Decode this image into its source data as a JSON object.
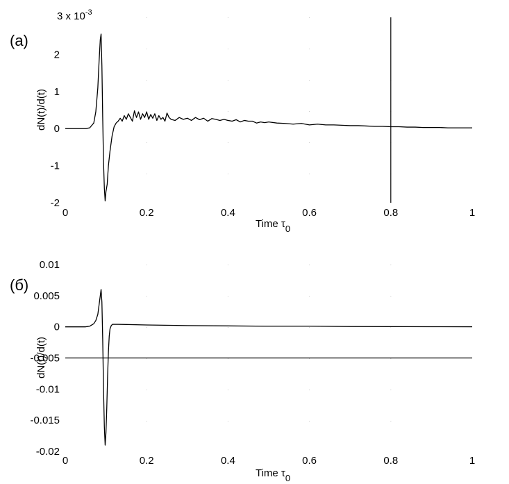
{
  "chart_data": [
    {
      "type": "line",
      "panel_label": "(a)",
      "xlabel": "Time",
      "xlabel_symbol": "τ",
      "xlabel_sub": "0",
      "ylabel": "dN(t)/d(t)",
      "exponent_base": "3 x 10",
      "exponent_power": "-3",
      "xlim": [
        0,
        1
      ],
      "ylim": [
        -2,
        3
      ],
      "xticks": [
        "0",
        "0.2",
        "0.4",
        "0.6",
        "0.8",
        "1"
      ],
      "yticks": [
        "-2",
        "-1",
        "0",
        "1",
        "2"
      ],
      "vertical_marker_x": 0.8,
      "grid": "dotted",
      "series": [
        {
          "x": [
            0,
            0.05,
            0.06,
            0.07,
            0.075,
            0.08,
            0.083,
            0.086,
            0.088,
            0.09,
            0.092,
            0.094,
            0.096,
            0.098,
            0.1,
            0.103,
            0.106,
            0.11,
            0.115,
            0.12,
            0.125,
            0.13,
            0.135,
            0.14,
            0.145,
            0.15,
            0.155,
            0.16,
            0.165,
            0.17,
            0.175,
            0.18,
            0.185,
            0.19,
            0.195,
            0.2,
            0.205,
            0.21,
            0.215,
            0.22,
            0.225,
            0.23,
            0.235,
            0.24,
            0.245,
            0.25,
            0.255,
            0.26,
            0.27,
            0.28,
            0.29,
            0.3,
            0.31,
            0.32,
            0.33,
            0.34,
            0.35,
            0.36,
            0.37,
            0.38,
            0.39,
            0.4,
            0.41,
            0.42,
            0.43,
            0.44,
            0.45,
            0.46,
            0.47,
            0.48,
            0.49,
            0.5,
            0.52,
            0.54,
            0.56,
            0.58,
            0.6,
            0.62,
            0.64,
            0.66,
            0.68,
            0.7,
            0.72,
            0.74,
            0.76,
            0.78,
            0.8,
            0.82,
            0.84,
            0.86,
            0.88,
            0.9,
            0.92,
            0.94,
            0.96,
            0.98,
            1.0
          ],
          "y": [
            0,
            0,
            0.02,
            0.15,
            0.45,
            1.1,
            1.8,
            2.4,
            2.55,
            1.7,
            0.3,
            -0.9,
            -1.6,
            -1.95,
            -1.7,
            -1.5,
            -1.0,
            -0.6,
            -0.2,
            0.05,
            0.15,
            0.2,
            0.28,
            0.2,
            0.35,
            0.25,
            0.4,
            0.3,
            0.2,
            0.48,
            0.3,
            0.45,
            0.25,
            0.4,
            0.3,
            0.45,
            0.25,
            0.38,
            0.28,
            0.4,
            0.22,
            0.35,
            0.25,
            0.3,
            0.2,
            0.42,
            0.3,
            0.25,
            0.22,
            0.3,
            0.25,
            0.28,
            0.22,
            0.3,
            0.24,
            0.28,
            0.2,
            0.27,
            0.25,
            0.22,
            0.25,
            0.22,
            0.2,
            0.24,
            0.18,
            0.22,
            0.2,
            0.2,
            0.15,
            0.18,
            0.16,
            0.18,
            0.15,
            0.14,
            0.12,
            0.14,
            0.1,
            0.12,
            0.1,
            0.1,
            0.09,
            0.08,
            0.08,
            0.07,
            0.06,
            0.06,
            0.05,
            0.05,
            0.04,
            0.04,
            0.03,
            0.03,
            0.03,
            0.02,
            0.02,
            0.02,
            0.02
          ]
        }
      ]
    },
    {
      "type": "line",
      "panel_label": "(б)",
      "xlabel": "Time",
      "xlabel_symbol": "τ",
      "xlabel_sub": "0",
      "ylabel": "dN(t)/d(t)",
      "xlim": [
        0,
        1
      ],
      "ylim": [
        -0.02,
        0.01
      ],
      "xticks": [
        "0",
        "0.2",
        "0.4",
        "0.6",
        "0.8",
        "1"
      ],
      "yticks": [
        "-0.02",
        "-0.015",
        "-0.01",
        "-0.005",
        "0",
        "0.005",
        "0.01"
      ],
      "horizontal_marker_y": -0.005,
      "grid": "dotted",
      "series": [
        {
          "x": [
            0,
            0.05,
            0.06,
            0.07,
            0.075,
            0.08,
            0.083,
            0.086,
            0.088,
            0.09,
            0.092,
            0.094,
            0.096,
            0.098,
            0.1,
            0.102,
            0.104,
            0.106,
            0.108,
            0.11,
            0.113,
            0.116,
            0.12,
            0.13,
            0.2,
            0.3,
            0.4,
            0.5,
            0.6,
            0.7,
            0.8,
            0.9,
            1.0
          ],
          "y": [
            0,
            0,
            0.0001,
            0.0005,
            0.001,
            0.002,
            0.0035,
            0.005,
            0.006,
            0.004,
            -0.002,
            -0.01,
            -0.016,
            -0.019,
            -0.017,
            -0.013,
            -0.008,
            -0.004,
            -0.0015,
            -0.0003,
            0.0002,
            0.0004,
            0.0004,
            0.0004,
            0.0003,
            0.0002,
            0.00015,
            0.0001,
            0.0001,
            5e-05,
            3e-05,
            2e-05,
            1e-05
          ]
        }
      ]
    }
  ]
}
